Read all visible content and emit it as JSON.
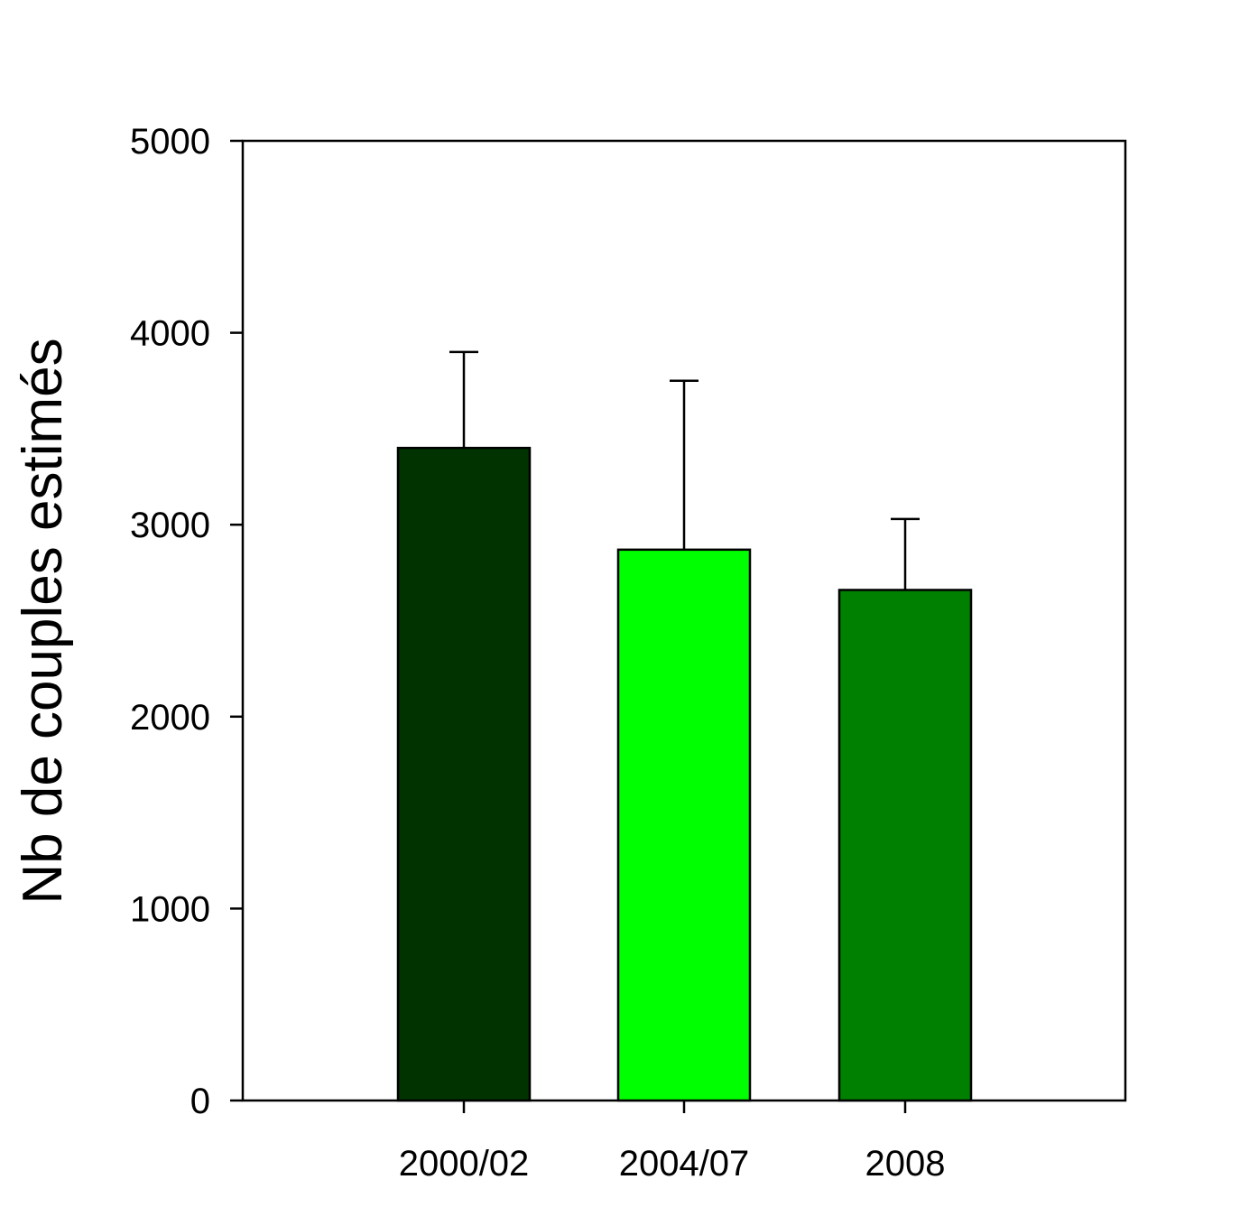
{
  "chart_data": {
    "type": "bar",
    "title": "",
    "xlabel": "",
    "ylabel": "Nb de couples estimés",
    "categories": [
      "2000/02",
      "2004/07",
      "2008"
    ],
    "values": [
      3400,
      2870,
      2660
    ],
    "error_upper": [
      3900,
      3750,
      3030
    ],
    "colors": [
      "#003300",
      "#00ff00",
      "#008000"
    ],
    "ylim": [
      0,
      5000
    ],
    "yticks": [
      0,
      1000,
      2000,
      3000,
      4000,
      5000
    ],
    "grid": false,
    "legend": "none"
  }
}
